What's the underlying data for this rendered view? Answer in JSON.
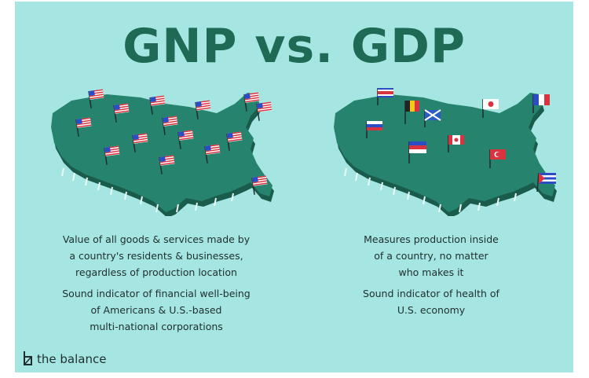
{
  "title": "GNP vs. GDP",
  "gnp": {
    "desc_lines": [
      "Value of all goods & services made by",
      "a country's residents & businesses,",
      "regardless of production location"
    ],
    "indicator_lines": [
      "Sound indicator of financial well-being",
      "of Americans & U.S.-based",
      "multi-national corporations"
    ]
  },
  "gdp": {
    "desc_lines": [
      "Measures production inside",
      "of a country, no matter",
      "who makes it"
    ],
    "indicator_lines": [
      "Sound indicator of health of",
      "U.S. economy"
    ]
  },
  "brand": {
    "name": "the balance"
  },
  "colors": {
    "background": "#a6e6e2",
    "map_fill": "#26836d",
    "map_edge": "#1a5c4c",
    "title": "#1e6a55",
    "text": "#1f2d2e"
  },
  "map_icons": {
    "left": "us-flag-icon",
    "right": [
      "russia-flag-icon",
      "belgium-flag-icon",
      "scotland-flag-icon",
      "japan-flag-icon",
      "france-flag-icon",
      "serbia-flag-icon",
      "canada-flag-icon",
      "turkey-flag-icon",
      "cuba-flag-icon",
      "costa-rica-flag-icon"
    ]
  }
}
